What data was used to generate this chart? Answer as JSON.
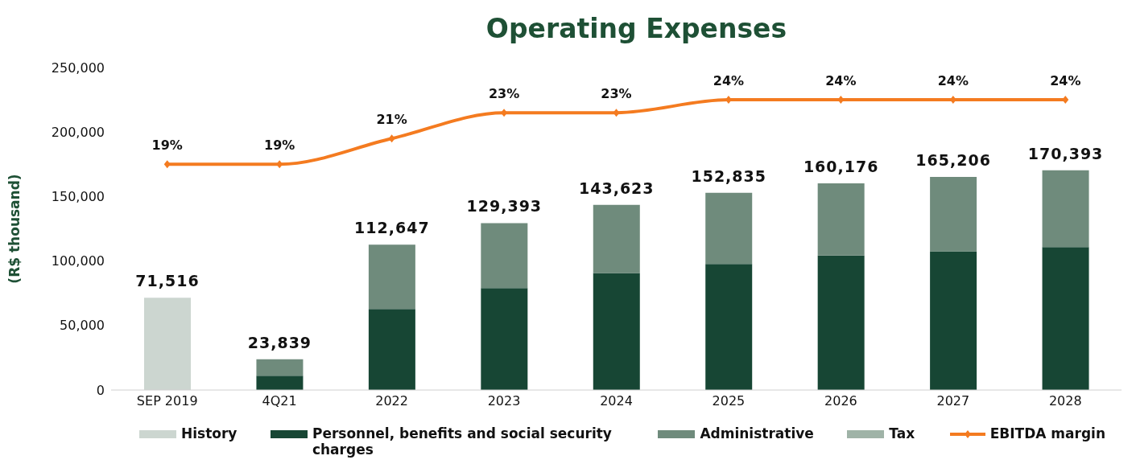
{
  "chart_data": {
    "type": "bar",
    "title": "Operating Expenses",
    "ylabel": "(R$ thousand)",
    "stacked": true,
    "categories": [
      "SEP 2019",
      "4Q21",
      "2022",
      "2023",
      "2024",
      "2025",
      "2026",
      "2027",
      "2028"
    ],
    "ylim": [
      0,
      250000
    ],
    "yticks": [
      0,
      {
        "value": 50000,
        "label": "50,000"
      },
      {
        "value": 100000,
        "label": "100,000"
      },
      {
        "value": 150000,
        "label": "150,000"
      },
      {
        "value": 200000,
        "label": "200,000"
      },
      {
        "value": 250000,
        "label": "250,000"
      }
    ],
    "series": [
      {
        "name": "History",
        "color": "#ccd6d0",
        "values": [
          71516,
          null,
          null,
          null,
          null,
          null,
          null,
          null,
          null
        ]
      },
      {
        "name": "Personnel, benefits and social security charges",
        "color": "#174634",
        "values": [
          null,
          11000,
          62800,
          79000,
          90700,
          97800,
          104300,
          107500,
          110800
        ]
      },
      {
        "name": "Administrative",
        "color": "#6f8b7c",
        "values": [
          null,
          12839,
          49847,
          50393,
          52923,
          55035,
          55876,
          57706,
          59593
        ]
      },
      {
        "name": "Tax",
        "color": "#9fb3a7",
        "values": [
          null,
          null,
          null,
          null,
          null,
          null,
          null,
          null,
          null
        ]
      },
      {
        "name": "EBITDA margin",
        "type": "line",
        "axis": "y2",
        "color": "#f47b20",
        "marker": "diamond",
        "values": [
          19,
          19,
          21,
          23,
          23,
          24,
          24,
          24,
          24
        ],
        "value_labels": [
          "19%",
          "19%",
          "21%",
          "23%",
          "23%",
          "24%",
          "24%",
          "24%",
          "24%"
        ]
      }
    ],
    "totals": [
      "71,516",
      "23,839",
      "112,647",
      "129,393",
      "143,623",
      "152,835",
      "160,176",
      "165,206",
      "170,393"
    ],
    "legend": "bottom"
  }
}
